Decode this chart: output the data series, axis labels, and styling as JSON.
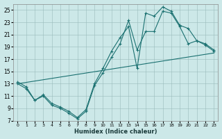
{
  "xlabel": "Humidex (Indice chaleur)",
  "bg_color": "#cce8e8",
  "line_color": "#1a7070",
  "xlim": [
    -0.5,
    23.5
  ],
  "ylim": [
    7,
    26
  ],
  "xticks": [
    0,
    1,
    2,
    3,
    4,
    5,
    6,
    7,
    8,
    9,
    10,
    11,
    12,
    13,
    14,
    15,
    16,
    17,
    18,
    19,
    20,
    21,
    22,
    23
  ],
  "yticks": [
    7,
    9,
    11,
    13,
    15,
    17,
    19,
    21,
    23,
    25
  ],
  "series1_x": [
    0,
    1,
    2,
    3,
    4,
    5,
    6,
    7,
    8,
    9,
    10,
    11,
    12,
    13,
    14,
    15,
    16,
    17,
    18,
    19,
    20,
    21,
    22,
    23
  ],
  "series1_y": [
    13.3,
    12.5,
    10.3,
    11.2,
    9.8,
    9.2,
    8.5,
    7.5,
    8.8,
    13.0,
    15.5,
    18.3,
    20.5,
    22.3,
    15.5,
    24.5,
    24.0,
    25.5,
    24.8,
    22.5,
    22.0,
    20.0,
    19.5,
    18.5
  ],
  "series2_x": [
    0,
    1,
    2,
    3,
    4,
    5,
    6,
    7,
    8,
    9,
    10,
    11,
    12,
    13,
    14,
    15,
    16,
    17,
    18,
    19,
    20,
    21,
    22,
    23
  ],
  "series2_y": [
    13.0,
    12.2,
    10.3,
    11.0,
    9.5,
    9.0,
    8.2,
    7.3,
    8.5,
    12.7,
    14.8,
    17.3,
    19.5,
    23.3,
    18.5,
    21.5,
    21.5,
    24.8,
    24.5,
    22.3,
    19.5,
    20.0,
    19.3,
    18.3
  ],
  "series3_x": [
    0,
    23
  ],
  "series3_y": [
    13.0,
    18.0
  ]
}
